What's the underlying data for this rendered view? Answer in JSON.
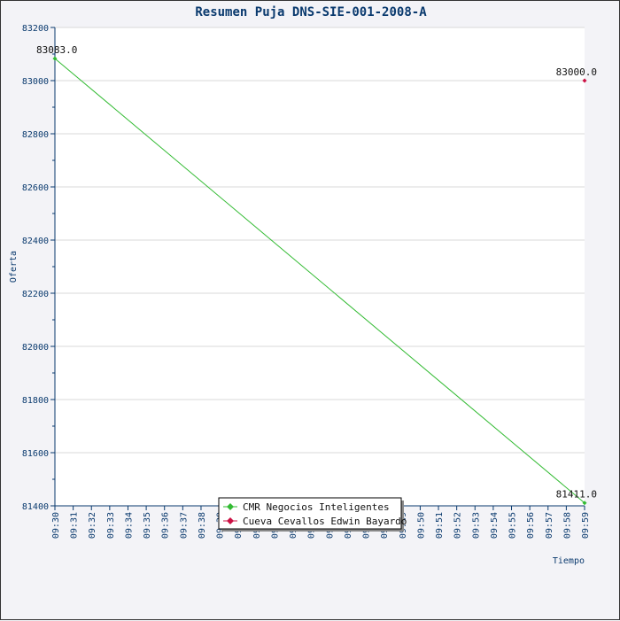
{
  "chart_data": {
    "type": "line",
    "title": "Resumen Puja DNS-SIE-001-2008-A",
    "xlabel": "Tiempo",
    "ylabel": "Oferta",
    "x_categories": [
      "09:30",
      "09:31",
      "09:32",
      "09:33",
      "09:34",
      "09:35",
      "09:36",
      "09:37",
      "09:38",
      "09:39",
      "09:40",
      "09:41",
      "09:42",
      "09:43",
      "09:44",
      "09:45",
      "09:46",
      "09:47",
      "09:48",
      "09:49",
      "09:50",
      "09:51",
      "09:52",
      "09:53",
      "09:54",
      "09:55",
      "09:56",
      "09:57",
      "09:58",
      "09:59"
    ],
    "ylim": [
      81400,
      83200
    ],
    "y_ticks": [
      81400,
      81600,
      81800,
      82000,
      82200,
      82400,
      82600,
      82800,
      83000,
      83200
    ],
    "grid": true,
    "legend_position": "bottom-center",
    "series": [
      {
        "name": "CMR Negocios Inteligentes",
        "color": "#33bb33",
        "points": [
          {
            "x": "09:30",
            "y": 83083.0,
            "label": "83083.0"
          },
          {
            "x": "09:59",
            "y": 81411.0,
            "label": "81411.0"
          }
        ]
      },
      {
        "name": "Cueva Cevallos Edwin Bayardo",
        "color": "#cc1144",
        "points": [
          {
            "x": "09:59",
            "y": 83000.0,
            "label": "83000.0"
          }
        ]
      }
    ]
  }
}
